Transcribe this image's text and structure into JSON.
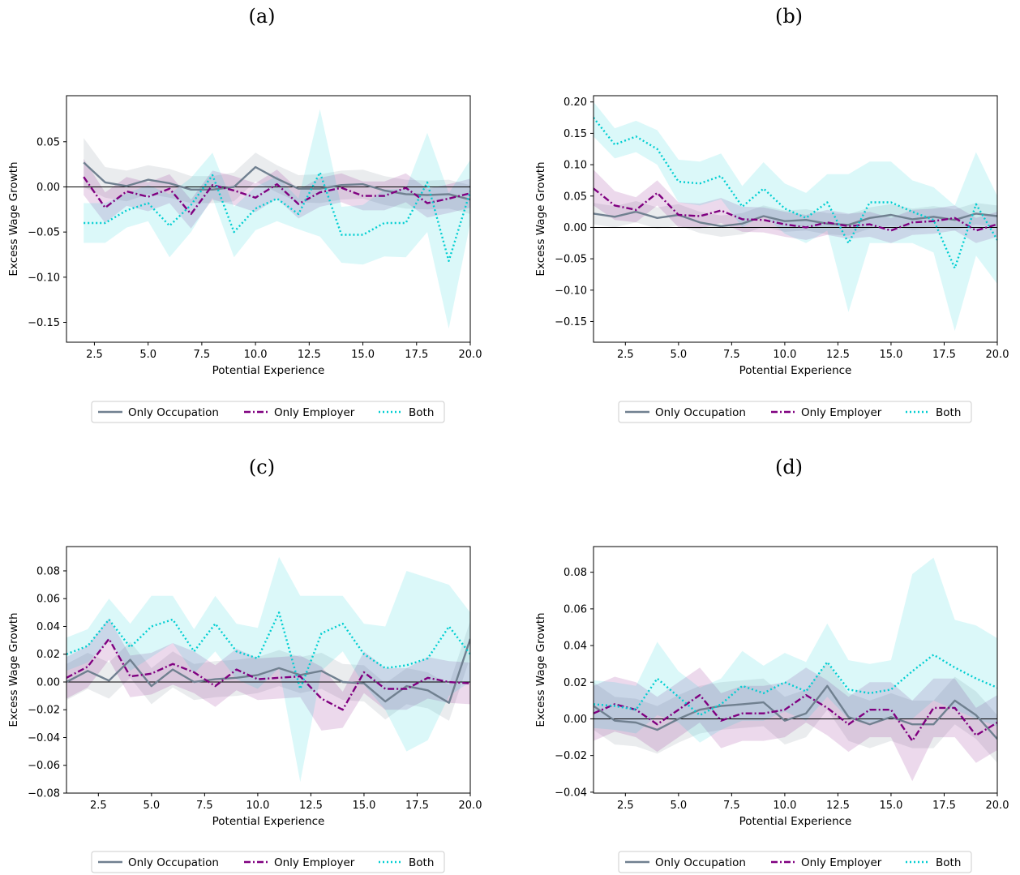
{
  "colors": {
    "occupation": "#708090",
    "employer": "#800080",
    "both": "#00ced1"
  },
  "legend": [
    {
      "key": "occupation",
      "label": "Only Occupation",
      "dash": "solid"
    },
    {
      "key": "employer",
      "label": "Only Employer",
      "dash": "dashdot"
    },
    {
      "key": "both",
      "label": "Both",
      "dash": "dotted"
    }
  ],
  "chart_data": [
    {
      "type": "line",
      "title": "(a)",
      "xlabel": "Potential Experience",
      "ylabel": "Excess Wage Growth",
      "xlim": [
        1.2,
        20.0
      ],
      "ylim": [
        -0.172,
        0.101
      ],
      "xticks": [
        "2.5",
        "5.0",
        "7.5",
        "10.0",
        "12.5",
        "15.0",
        "17.5",
        "20.0"
      ],
      "yticks": [
        "0.05",
        "0.00",
        "−0.05",
        "−0.10",
        "−0.15"
      ],
      "x": [
        2,
        3,
        4,
        5,
        6,
        7,
        8,
        9,
        10,
        11,
        12,
        13,
        14,
        15,
        16,
        17,
        18,
        19,
        20
      ],
      "series": [
        {
          "name": "Only Occupation",
          "key": "occupation",
          "values": [
            0.027,
            0.005,
            0.001,
            0.008,
            0.004,
            -0.003,
            -0.003,
            0.0,
            0.022,
            0.009,
            -0.002,
            -0.002,
            0.002,
            0.003,
            -0.004,
            -0.008,
            -0.009,
            -0.008,
            -0.014
          ],
          "lower": [
            0.0,
            -0.012,
            -0.016,
            -0.008,
            -0.012,
            -0.018,
            -0.018,
            -0.016,
            0.006,
            -0.006,
            -0.017,
            -0.018,
            -0.014,
            -0.013,
            -0.02,
            -0.024,
            -0.025,
            -0.024,
            -0.03
          ],
          "upper": [
            0.054,
            0.022,
            0.018,
            0.024,
            0.02,
            0.012,
            0.012,
            0.016,
            0.038,
            0.024,
            0.013,
            0.014,
            0.018,
            0.019,
            0.012,
            0.008,
            0.007,
            0.008,
            0.002
          ]
        },
        {
          "name": "Only Employer",
          "key": "employer",
          "values": [
            0.011,
            -0.023,
            -0.005,
            -0.011,
            -0.002,
            -0.03,
            0.002,
            -0.004,
            -0.012,
            0.003,
            -0.019,
            -0.006,
            -0.001,
            -0.01,
            -0.01,
            -0.001,
            -0.018,
            -0.013,
            -0.007
          ],
          "lower": [
            -0.009,
            -0.04,
            -0.021,
            -0.027,
            -0.018,
            -0.046,
            -0.014,
            -0.02,
            -0.028,
            -0.013,
            -0.035,
            -0.022,
            -0.017,
            -0.026,
            -0.026,
            -0.017,
            -0.034,
            -0.029,
            -0.023
          ],
          "upper": [
            0.031,
            -0.006,
            0.011,
            0.005,
            0.014,
            -0.014,
            0.018,
            0.012,
            0.004,
            0.019,
            -0.003,
            0.01,
            0.015,
            0.006,
            0.006,
            0.015,
            -0.002,
            0.003,
            0.009
          ]
        },
        {
          "name": "Both",
          "key": "both",
          "values": [
            -0.04,
            -0.04,
            -0.026,
            -0.018,
            -0.043,
            -0.02,
            0.013,
            -0.05,
            -0.024,
            -0.013,
            -0.03,
            0.016,
            -0.053,
            -0.053,
            -0.04,
            -0.04,
            0.005,
            -0.082,
            -0.005
          ],
          "lower": [
            -0.062,
            -0.062,
            -0.045,
            -0.038,
            -0.078,
            -0.05,
            -0.012,
            -0.078,
            -0.048,
            -0.038,
            -0.047,
            -0.055,
            -0.084,
            -0.086,
            -0.077,
            -0.078,
            -0.05,
            -0.157,
            -0.04
          ],
          "upper": [
            -0.018,
            -0.018,
            -0.007,
            0.002,
            -0.008,
            0.01,
            0.038,
            -0.022,
            0.0,
            0.012,
            -0.013,
            0.086,
            -0.022,
            -0.02,
            -0.003,
            -0.002,
            0.06,
            -0.007,
            0.03
          ]
        }
      ]
    },
    {
      "type": "line",
      "title": "(b)",
      "xlabel": "Potential Experience",
      "ylabel": "Excess Wage Growth",
      "xlim": [
        1.0,
        20.0
      ],
      "ylim": [
        -0.183,
        0.21
      ],
      "xticks": [
        "2.5",
        "5.0",
        "7.5",
        "10.0",
        "12.5",
        "15.0",
        "17.5",
        "20.0"
      ],
      "yticks": [
        "0.20",
        "0.15",
        "0.10",
        "0.05",
        "0.00",
        "−0.05",
        "−0.10",
        "−0.15"
      ],
      "x": [
        1,
        2,
        3,
        4,
        5,
        6,
        7,
        8,
        9,
        10,
        11,
        12,
        13,
        14,
        15,
        16,
        17,
        18,
        19,
        20
      ],
      "series": [
        {
          "name": "Only Occupation",
          "key": "occupation",
          "values": [
            0.022,
            0.017,
            0.025,
            0.015,
            0.02,
            0.008,
            0.002,
            0.006,
            0.018,
            0.01,
            0.012,
            0.006,
            0.004,
            0.015,
            0.02,
            0.013,
            0.017,
            0.012,
            0.022,
            0.018
          ],
          "lower": [
            0.005,
            0.0,
            0.008,
            -0.002,
            0.003,
            -0.009,
            -0.015,
            -0.011,
            0.001,
            -0.007,
            -0.005,
            -0.011,
            -0.013,
            -0.002,
            0.003,
            -0.004,
            0.0,
            -0.005,
            0.005,
            0.001
          ],
          "upper": [
            0.039,
            0.034,
            0.042,
            0.032,
            0.037,
            0.025,
            0.019,
            0.023,
            0.035,
            0.027,
            0.029,
            0.023,
            0.021,
            0.032,
            0.037,
            0.03,
            0.034,
            0.029,
            0.039,
            0.035
          ]
        },
        {
          "name": "Only Employer",
          "key": "employer",
          "values": [
            0.062,
            0.035,
            0.028,
            0.055,
            0.02,
            0.018,
            0.027,
            0.013,
            0.012,
            0.005,
            0.0,
            0.008,
            0.002,
            0.005,
            -0.005,
            0.008,
            0.01,
            0.015,
            -0.005,
            0.005
          ],
          "lower": [
            0.035,
            0.012,
            0.008,
            0.035,
            0.0,
            -0.002,
            0.007,
            -0.007,
            -0.008,
            -0.015,
            -0.02,
            -0.012,
            -0.018,
            -0.015,
            -0.025,
            -0.012,
            -0.01,
            -0.005,
            -0.025,
            -0.015
          ],
          "upper": [
            0.092,
            0.058,
            0.048,
            0.075,
            0.04,
            0.038,
            0.047,
            0.033,
            0.032,
            0.025,
            0.02,
            0.028,
            0.022,
            0.025,
            0.015,
            0.028,
            0.03,
            0.035,
            0.015,
            0.025
          ]
        },
        {
          "name": "Both",
          "key": "both",
          "values": [
            0.175,
            0.132,
            0.145,
            0.125,
            0.073,
            0.07,
            0.082,
            0.033,
            0.062,
            0.03,
            0.015,
            0.04,
            -0.025,
            0.04,
            0.04,
            0.025,
            0.012,
            -0.065,
            0.037,
            -0.02
          ],
          "lower": [
            0.145,
            0.11,
            0.12,
            0.1,
            0.04,
            0.035,
            0.045,
            0.0,
            0.02,
            -0.01,
            -0.025,
            -0.005,
            -0.135,
            -0.025,
            -0.025,
            -0.025,
            -0.04,
            -0.165,
            -0.045,
            -0.09
          ],
          "upper": [
            0.2,
            0.158,
            0.17,
            0.155,
            0.108,
            0.105,
            0.118,
            0.066,
            0.104,
            0.07,
            0.055,
            0.085,
            0.085,
            0.105,
            0.105,
            0.075,
            0.064,
            0.035,
            0.12,
            0.05
          ]
        }
      ]
    },
    {
      "type": "line",
      "title": "(c)",
      "xlabel": "Potential Experience",
      "ylabel": "Excess Wage Growth",
      "xlim": [
        1.0,
        20.0
      ],
      "ylim": [
        -0.08,
        0.0975
      ],
      "xticks": [
        "2.5",
        "5.0",
        "7.5",
        "10.0",
        "12.5",
        "15.0",
        "17.5",
        "20.0"
      ],
      "yticks": [
        "0.08",
        "0.06",
        "0.04",
        "0.02",
        "0.00",
        "−0.02",
        "−0.04",
        "−0.06",
        "−0.08"
      ],
      "x": [
        1,
        2,
        3,
        4,
        5,
        6,
        7,
        8,
        9,
        10,
        11,
        12,
        13,
        14,
        15,
        16,
        17,
        18,
        19,
        20
      ],
      "series": [
        {
          "name": "Only Occupation",
          "key": "occupation",
          "values": [
            0.0,
            0.008,
            0.001,
            0.016,
            -0.003,
            0.009,
            0.0,
            0.002,
            0.003,
            0.005,
            0.01,
            0.005,
            0.008,
            0.0,
            -0.001,
            -0.014,
            -0.003,
            -0.006,
            -0.015,
            0.031
          ],
          "lower": [
            -0.013,
            -0.005,
            -0.012,
            0.003,
            -0.016,
            -0.004,
            -0.013,
            -0.011,
            -0.01,
            -0.008,
            -0.003,
            -0.008,
            -0.005,
            -0.013,
            -0.014,
            -0.027,
            -0.016,
            -0.019,
            -0.028,
            0.018
          ],
          "upper": [
            0.013,
            0.021,
            0.014,
            0.029,
            0.01,
            0.022,
            0.013,
            0.015,
            0.016,
            0.018,
            0.023,
            0.018,
            0.021,
            0.013,
            0.012,
            -0.001,
            0.01,
            0.007,
            -0.002,
            0.044
          ]
        },
        {
          "name": "Only Employer",
          "key": "employer",
          "values": [
            0.003,
            0.011,
            0.031,
            0.004,
            0.006,
            0.013,
            0.007,
            -0.003,
            0.009,
            0.002,
            0.003,
            0.004,
            -0.012,
            -0.02,
            0.007,
            -0.005,
            -0.005,
            0.003,
            0.0,
            -0.001
          ],
          "lower": [
            -0.012,
            -0.004,
            0.016,
            -0.011,
            -0.009,
            -0.002,
            -0.008,
            -0.018,
            -0.006,
            -0.013,
            -0.012,
            -0.011,
            -0.035,
            -0.033,
            -0.008,
            -0.02,
            -0.02,
            -0.012,
            -0.015,
            -0.016
          ],
          "upper": [
            0.018,
            0.026,
            0.046,
            0.019,
            0.021,
            0.028,
            0.022,
            0.012,
            0.024,
            0.017,
            0.018,
            0.019,
            0.011,
            -0.007,
            0.022,
            0.01,
            0.01,
            0.018,
            0.015,
            0.014
          ]
        },
        {
          "name": "Both",
          "key": "both",
          "values": [
            0.02,
            0.026,
            0.045,
            0.025,
            0.04,
            0.045,
            0.022,
            0.042,
            0.022,
            0.017,
            0.05,
            -0.005,
            0.035,
            0.042,
            0.02,
            0.01,
            0.012,
            0.017,
            0.04,
            0.02
          ],
          "lower": [
            0.008,
            0.014,
            0.03,
            0.008,
            0.018,
            0.028,
            0.006,
            0.022,
            0.002,
            -0.005,
            0.01,
            -0.072,
            0.008,
            0.022,
            -0.002,
            -0.02,
            -0.05,
            -0.042,
            -0.01,
            0.0
          ],
          "upper": [
            0.032,
            0.038,
            0.06,
            0.042,
            0.062,
            0.062,
            0.038,
            0.062,
            0.042,
            0.039,
            0.09,
            0.062,
            0.062,
            0.062,
            0.042,
            0.04,
            0.08,
            0.075,
            0.07,
            0.05
          ]
        }
      ]
    },
    {
      "type": "line",
      "title": "(d)",
      "xlabel": "Potential Experience",
      "ylabel": "Excess Wage Growth",
      "xlim": [
        1.0,
        20.0
      ],
      "ylim": [
        -0.0405,
        0.094
      ],
      "xticks": [
        "2.5",
        "5.0",
        "7.5",
        "10.0",
        "12.5",
        "15.0",
        "17.5",
        "20.0"
      ],
      "yticks": [
        "0.08",
        "0.06",
        "0.04",
        "0.02",
        "0.00",
        "−0.02",
        "−0.04"
      ],
      "x": [
        1,
        2,
        3,
        4,
        5,
        6,
        7,
        8,
        9,
        10,
        11,
        12,
        13,
        14,
        15,
        16,
        17,
        18,
        19,
        20
      ],
      "series": [
        {
          "name": "Only Occupation",
          "key": "occupation",
          "values": [
            0.007,
            -0.001,
            -0.002,
            -0.006,
            0.0,
            0.005,
            0.007,
            0.008,
            0.009,
            -0.001,
            0.003,
            0.018,
            0.001,
            -0.003,
            0.001,
            -0.003,
            -0.003,
            0.01,
            0.002,
            -0.011
          ],
          "lower": [
            -0.006,
            -0.014,
            -0.015,
            -0.019,
            -0.013,
            -0.008,
            -0.006,
            -0.005,
            -0.004,
            -0.014,
            -0.01,
            0.005,
            -0.012,
            -0.016,
            -0.012,
            -0.016,
            -0.016,
            -0.003,
            -0.011,
            -0.024
          ],
          "upper": [
            0.02,
            0.012,
            0.011,
            0.007,
            0.013,
            0.018,
            0.02,
            0.021,
            0.022,
            0.012,
            0.016,
            0.031,
            0.014,
            0.01,
            0.014,
            0.01,
            0.01,
            0.023,
            0.015,
            0.002
          ]
        },
        {
          "name": "Only Employer",
          "key": "employer",
          "values": [
            0.003,
            0.008,
            0.005,
            -0.003,
            0.005,
            0.013,
            -0.001,
            0.003,
            0.003,
            0.005,
            0.013,
            0.006,
            -0.003,
            0.005,
            0.005,
            -0.012,
            0.006,
            0.006,
            -0.009,
            -0.002
          ],
          "lower": [
            -0.012,
            -0.007,
            -0.01,
            -0.018,
            -0.01,
            -0.002,
            -0.016,
            -0.012,
            -0.012,
            -0.01,
            -0.002,
            -0.009,
            -0.018,
            -0.01,
            -0.01,
            -0.034,
            -0.01,
            -0.01,
            -0.024,
            -0.017
          ],
          "upper": [
            0.018,
            0.023,
            0.02,
            0.012,
            0.02,
            0.028,
            0.014,
            0.018,
            0.018,
            0.02,
            0.028,
            0.021,
            0.012,
            0.02,
            0.02,
            0.01,
            0.022,
            0.022,
            0.006,
            0.013
          ]
        },
        {
          "name": "Both",
          "key": "both",
          "values": [
            0.008,
            0.007,
            0.005,
            0.022,
            0.012,
            0.002,
            0.008,
            0.018,
            0.014,
            0.02,
            0.015,
            0.031,
            0.016,
            0.014,
            0.016,
            0.026,
            0.035,
            0.028,
            0.022,
            0.017
          ],
          "lower": [
            -0.005,
            -0.006,
            -0.008,
            0.002,
            -0.002,
            -0.013,
            -0.006,
            -0.001,
            -0.001,
            0.004,
            -0.001,
            0.012,
            0.0,
            -0.002,
            0.0,
            0.0,
            0.01,
            0.005,
            0.0,
            -0.004
          ],
          "upper": [
            0.021,
            0.02,
            0.018,
            0.042,
            0.026,
            0.017,
            0.022,
            0.037,
            0.029,
            0.036,
            0.031,
            0.052,
            0.032,
            0.03,
            0.032,
            0.079,
            0.088,
            0.054,
            0.051,
            0.044
          ]
        }
      ]
    }
  ]
}
